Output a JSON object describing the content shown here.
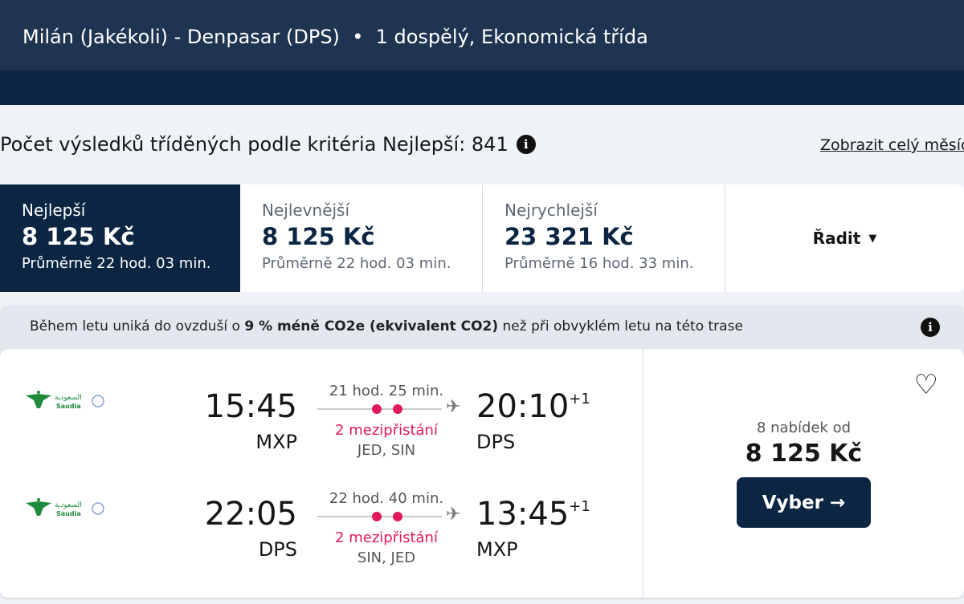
{
  "header": {
    "route": "Milán (Jakékoli) - Denpasar (DPS)",
    "separator": "•",
    "passengers": "1 dospělý, Ekonomická třída"
  },
  "results": {
    "count_text": "Počet výsledků tříděných podle kritéria Nejlepší: 841",
    "month_link": "Zobrazit celý měsíc"
  },
  "tabs": [
    {
      "label": "Nejlepší",
      "price": "8 125 Kč",
      "avg": "Průměrně 22 hod. 03 min.",
      "active": true
    },
    {
      "label": "Nejlevnější",
      "price": "8 125 Kč",
      "avg": "Průměrně 22 hod. 03 min."
    },
    {
      "label": "Nejrychlejší",
      "price": "23 321 Kč",
      "avg": "Průměrně 16 hod. 33 min."
    }
  ],
  "sort": {
    "label": "Řadit"
  },
  "co2": {
    "before": "Během letu uniká do ovzduší o ",
    "bold": "9 % méně CO2e (ekvivalent CO2)",
    "after": " než při obvyklém letu na této trase"
  },
  "result": {
    "legs": [
      {
        "airline": "Saudia",
        "dep_time": "15:45",
        "dep_airport": "MXP",
        "duration": "21 hod. 25 min.",
        "stops": "2 mezipřistání",
        "via": "JED, SIN",
        "arr_time": "20:10",
        "arr_offset": "+1",
        "arr_airport": "DPS"
      },
      {
        "airline": "Saudia",
        "dep_time": "22:05",
        "dep_airport": "DPS",
        "duration": "22 hod. 40 min.",
        "stops": "2 mezipřistání",
        "via": "SIN, JED",
        "arr_time": "13:45",
        "arr_offset": "+1",
        "arr_airport": "MXP"
      }
    ],
    "offers": "8 nabídek od",
    "price": "8 125 Kč",
    "select_label": "Vyber"
  },
  "colors": {
    "navy": "#0b2542",
    "stops": "#e0195f",
    "saudia_green": "#1f8a3c"
  }
}
